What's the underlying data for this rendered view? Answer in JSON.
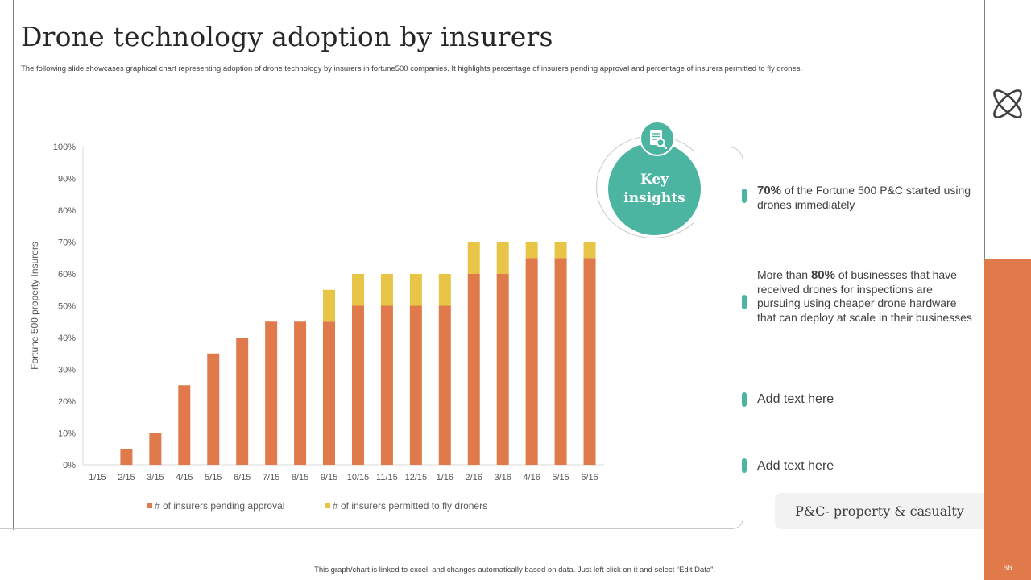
{
  "header": {
    "title": "Drone technology adoption by insurers",
    "subtitle": "The following slide showcases graphical chart representing adoption of drone technology by insurers in fortune500 companies. It highlights percentage of insurers pending approval and percentage of insurers permitted to fly drones."
  },
  "colors": {
    "orange": "#E07A4A",
    "yellow": "#E8C547",
    "teal": "#4BB5A2"
  },
  "chart_data": {
    "type": "bar",
    "stacked": true,
    "categories": [
      "1/15",
      "2/15",
      "3/15",
      "4/15",
      "5/15",
      "6/15",
      "7/15",
      "8/15",
      "9/15",
      "10/15",
      "11/15",
      "12/15",
      "1/16",
      "2/16",
      "3/16",
      "4/16",
      "5/15",
      "6/15"
    ],
    "series": [
      {
        "name": "# of insurers pending approval",
        "color": "#E07A4A",
        "values": [
          0,
          5,
          10,
          25,
          35,
          40,
          45,
          45,
          45,
          50,
          50,
          50,
          50,
          60,
          60,
          65,
          65,
          65
        ]
      },
      {
        "name": "# of insurers permitted to fly droners",
        "color": "#E8C547",
        "values": [
          0,
          0,
          0,
          0,
          0,
          0,
          0,
          0,
          10,
          10,
          10,
          10,
          10,
          10,
          10,
          5,
          5,
          5
        ]
      }
    ],
    "ylabel": "Fortune 500 property Insurers",
    "xlabel": "",
    "ylim": [
      0,
      100
    ],
    "yticks": [
      "0%",
      "10%",
      "20%",
      "30%",
      "40%",
      "50%",
      "60%",
      "70%",
      "80%",
      "90%",
      "100%"
    ],
    "legend": "bottom"
  },
  "key_insights": {
    "label": "Key insights",
    "icon": "document-search-icon",
    "items": [
      {
        "highlight": "70%",
        "text": " of the Fortune 500 P&C started using drones immediately"
      },
      {
        "prefix": "More than ",
        "highlight": "80%",
        "text": " of businesses that have received drones for inspections are pursuing using cheaper drone hardware that can deploy at scale in their businesses"
      },
      {
        "text": "Add text here"
      },
      {
        "text": "Add text here"
      }
    ]
  },
  "pc_label": "P&C- property & casualty",
  "footer": "This graph/chart is linked to excel, and changes automatically based on data. Just left click on it and select “Edit Data”.",
  "page_number": "66",
  "side_icon": "atom-icon"
}
